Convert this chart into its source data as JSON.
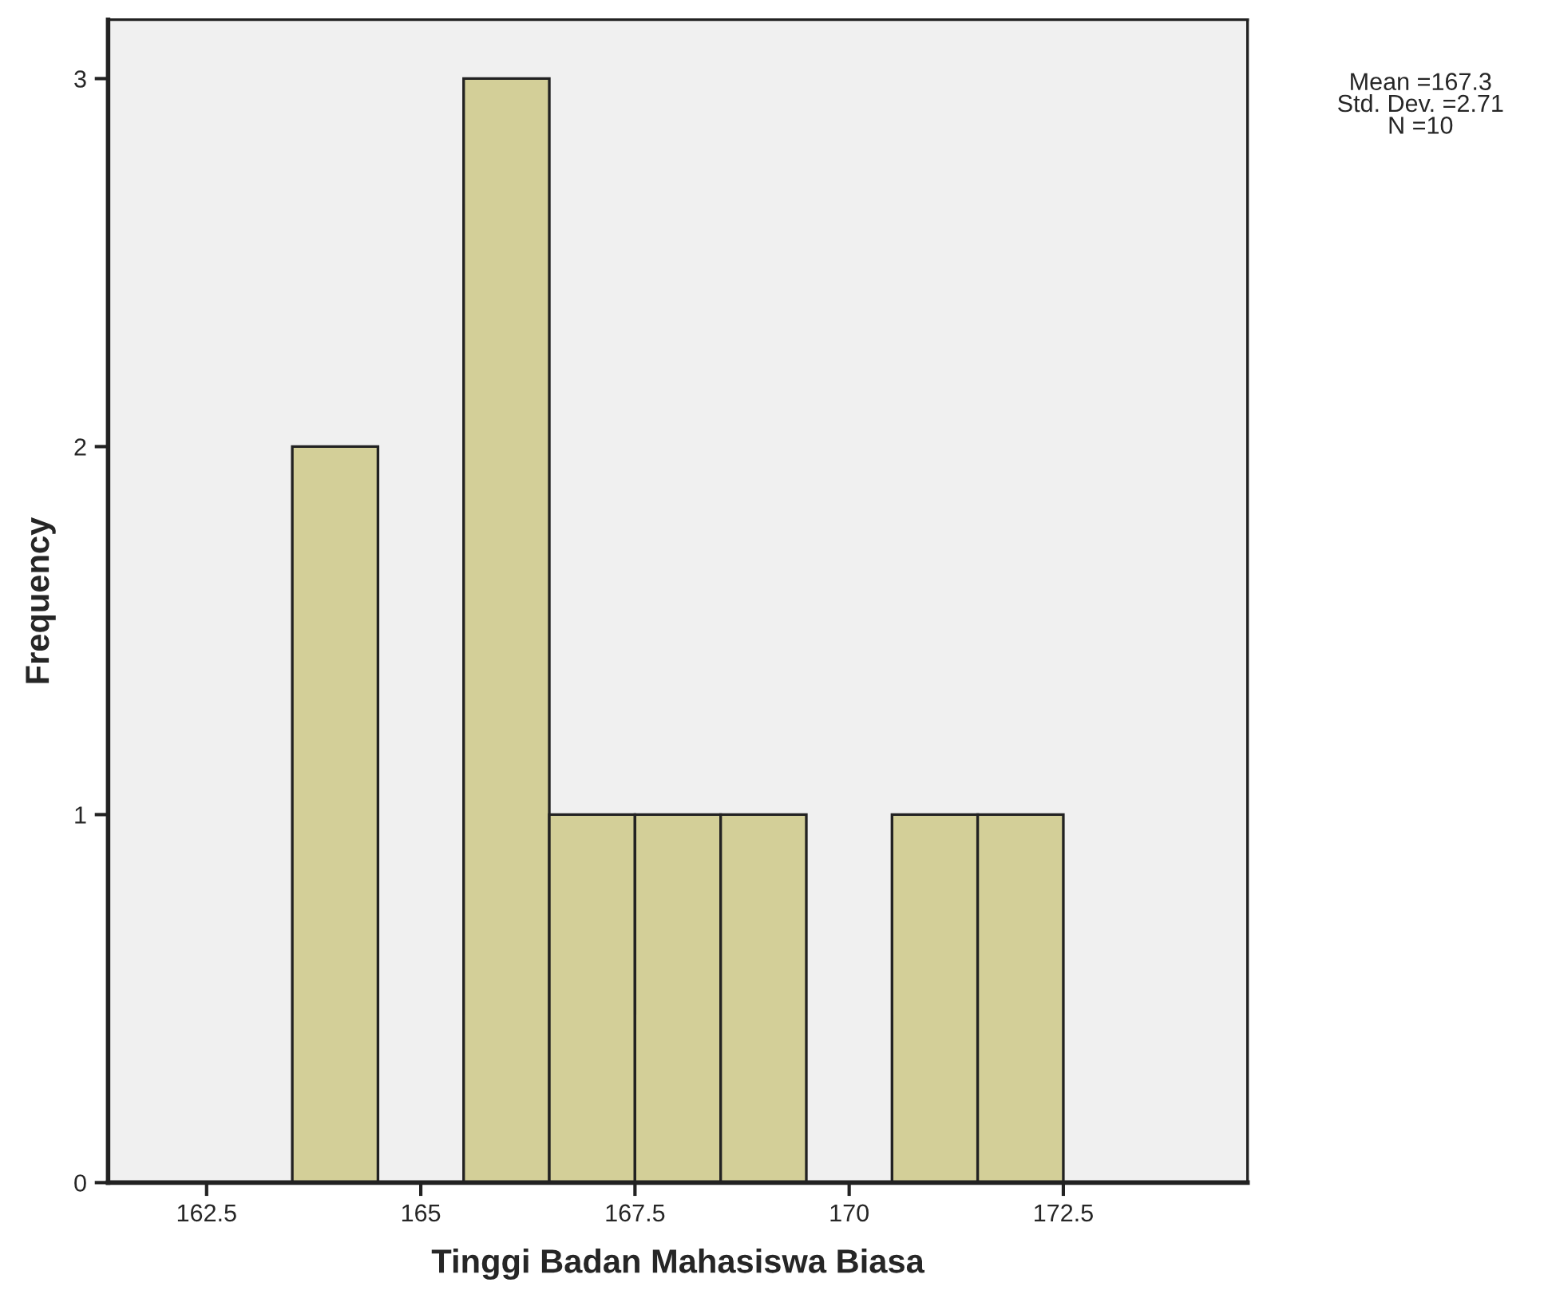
{
  "chart_data": {
    "type": "histogram",
    "xlabel": "Tinggi Badan Mahasiswa Biasa",
    "ylabel": "Frequency",
    "bins": [
      163.5,
      164.5,
      165.5,
      166.5,
      167.5,
      168.5,
      169.5,
      170.5,
      171.5,
      172.5
    ],
    "values": [
      2,
      0,
      3,
      1,
      1,
      1,
      0,
      1,
      1
    ],
    "color": "#d3cf98",
    "xlim": [
      161.35,
      174.65
    ],
    "xticks": [
      162.5,
      165,
      167.5,
      170,
      172.5
    ],
    "ylim": [
      0,
      3.16
    ],
    "yticks": [
      0,
      1,
      2,
      3
    ],
    "grid": false,
    "annotations": [
      "Mean =167.3\nStd. Dev. =2.71\nN =10"
    ]
  }
}
